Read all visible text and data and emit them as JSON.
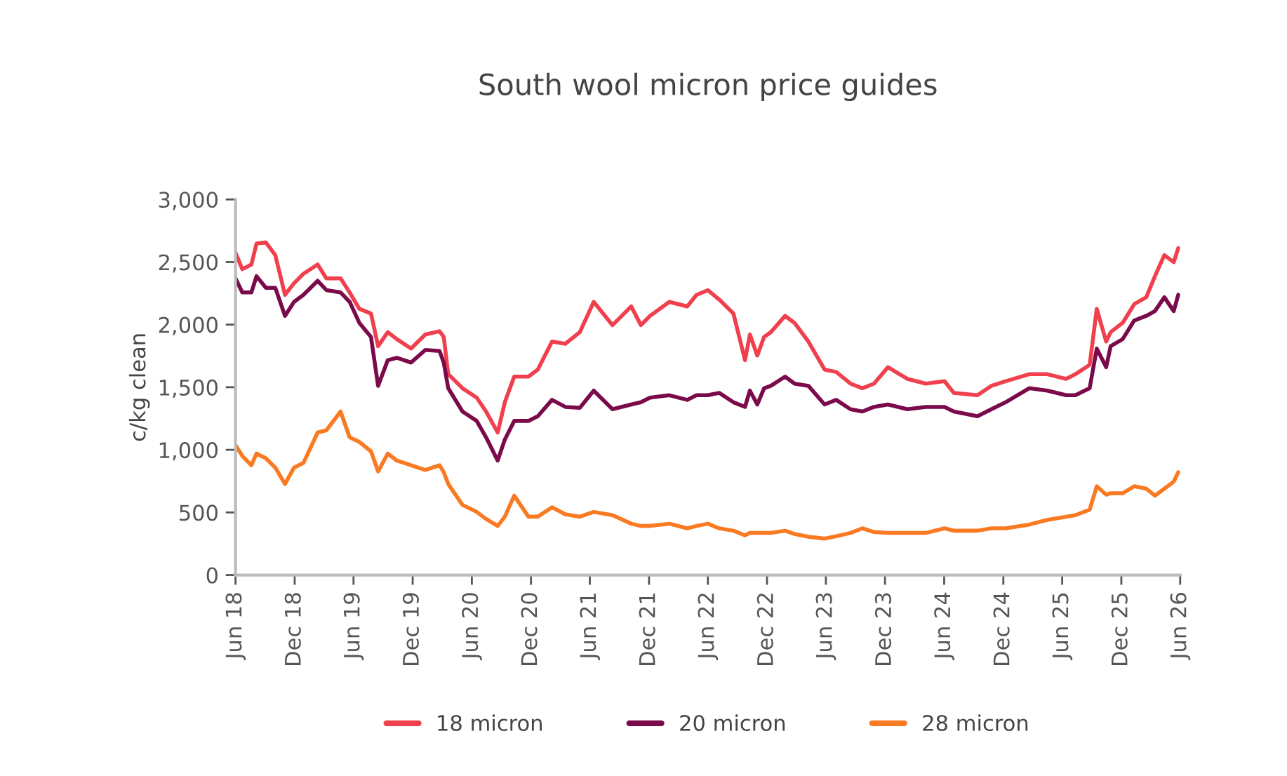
{
  "chart_data": {
    "type": "line",
    "title": "South wool micron price guides",
    "ylabel": "c/kg clean",
    "x": [
      "2018-06-01",
      "2018-06-22",
      "2018-07-20",
      "2018-08-05",
      "2018-09-03",
      "2018-10-02",
      "2018-11-01",
      "2018-11-29",
      "2018-12-28",
      "2019-02-10",
      "2019-03-09",
      "2019-04-22",
      "2019-05-20",
      "2019-06-19",
      "2019-07-25",
      "2019-08-16",
      "2019-09-15",
      "2019-10-13",
      "2019-11-26",
      "2020-01-09",
      "2020-02-22",
      "2020-03-06",
      "2020-03-20",
      "2020-05-03",
      "2020-06-16",
      "2020-07-15",
      "2020-08-20",
      "2020-09-11",
      "2020-10-10",
      "2020-11-23",
      "2020-12-22",
      "2021-02-04",
      "2021-03-17",
      "2021-05-01",
      "2021-06-13",
      "2021-08-10",
      "2021-10-07",
      "2021-11-06",
      "2021-12-04",
      "2022-02-02",
      "2022-03-29",
      "2022-04-27",
      "2022-06-01",
      "2022-07-06",
      "2022-08-19",
      "2022-09-24",
      "2022-10-09",
      "2022-11-01",
      "2022-11-22",
      "2022-12-13",
      "2023-01-26",
      "2023-02-24",
      "2023-04-08",
      "2023-05-28",
      "2023-07-03",
      "2023-08-16",
      "2023-09-22",
      "2023-10-28",
      "2023-12-10",
      "2024-02-08",
      "2024-04-05",
      "2024-06-02",
      "2024-07-01",
      "2024-09-12",
      "2024-10-25",
      "2024-12-08",
      "2025-02-19",
      "2025-04-16",
      "2025-06-13",
      "2025-07-12",
      "2025-08-25",
      "2025-09-16",
      "2025-10-15",
      "2025-10-29",
      "2025-12-05",
      "2026-01-10",
      "2026-02-16",
      "2026-03-15",
      "2026-04-13",
      "2026-05-12",
      "2026-05-26"
    ],
    "series": [
      {
        "name": "18 micron",
        "color": "#f0404e",
        "values": [
          2574,
          2443,
          2480,
          2648,
          2656,
          2555,
          2238,
          2331,
          2406,
          2480,
          2369,
          2369,
          2257,
          2126,
          2089,
          1828,
          1940,
          1884,
          1809,
          1921,
          1947,
          1902,
          1604,
          1492,
          1417,
          1306,
          1138,
          1380,
          1585,
          1585,
          1641,
          1865,
          1847,
          1940,
          2182,
          1996,
          2145,
          1996,
          2070,
          2182,
          2145,
          2238,
          2275,
          2201,
          2089,
          1716,
          1921,
          1753,
          1902,
          1940,
          2070,
          2014,
          1865,
          1641,
          1622,
          1529,
          1492,
          1529,
          1660,
          1567,
          1529,
          1548,
          1455,
          1436,
          1511,
          1548,
          1604,
          1604,
          1567,
          1604,
          1679,
          2126,
          1865,
          1940,
          2014,
          2164,
          2219,
          2387,
          2555,
          2499,
          2611
        ]
      },
      {
        "name": "20 micron",
        "color": "#7a0a4a",
        "values": [
          2369,
          2257,
          2257,
          2387,
          2294,
          2294,
          2070,
          2182,
          2238,
          2350,
          2276,
          2257,
          2182,
          2014,
          1902,
          1511,
          1716,
          1735,
          1697,
          1798,
          1790,
          1697,
          1492,
          1306,
          1231,
          1100,
          914,
          1082,
          1231,
          1231,
          1268,
          1399,
          1343,
          1335,
          1473,
          1324,
          1362,
          1380,
          1417,
          1436,
          1399,
          1436,
          1436,
          1455,
          1380,
          1343,
          1473,
          1362,
          1492,
          1511,
          1585,
          1529,
          1511,
          1362,
          1399,
          1324,
          1306,
          1343,
          1362,
          1324,
          1343,
          1343,
          1306,
          1268,
          1324,
          1380,
          1492,
          1473,
          1436,
          1436,
          1492,
          1809,
          1660,
          1828,
          1884,
          2033,
          2070,
          2108,
          2219,
          2108,
          2238
        ]
      },
      {
        "name": "28 micron",
        "color": "#f97a22",
        "values": [
          1037,
          951,
          877,
          970,
          932,
          858,
          727,
          858,
          895,
          1138,
          1156,
          1306,
          1100,
          1063,
          988,
          828,
          970,
          914,
          877,
          839,
          877,
          821,
          727,
          560,
          504,
          448,
          392,
          466,
          634,
          466,
          466,
          541,
          485,
          466,
          504,
          478,
          410,
          392,
          392,
          410,
          373,
          392,
          410,
          373,
          354,
          317,
          336,
          336,
          336,
          336,
          354,
          328,
          306,
          291,
          310,
          336,
          373,
          343,
          336,
          336,
          336,
          373,
          354,
          354,
          373,
          373,
          403,
          440,
          466,
          478,
          522,
          709,
          642,
          653,
          653,
          709,
          690,
          634,
          690,
          746,
          821
        ]
      }
    ],
    "xlim": [
      "2018-06-01",
      "2026-06-01"
    ],
    "xticks": [
      {
        "value": "2018-06-01",
        "label": "Jun 18"
      },
      {
        "value": "2018-12-01",
        "label": "Dec 18"
      },
      {
        "value": "2019-06-01",
        "label": "Jun 19"
      },
      {
        "value": "2019-12-01",
        "label": "Dec 19"
      },
      {
        "value": "2020-06-01",
        "label": "Jun 20"
      },
      {
        "value": "2020-12-01",
        "label": "Dec 20"
      },
      {
        "value": "2021-06-01",
        "label": "Jun 21"
      },
      {
        "value": "2021-12-01",
        "label": "Dec 21"
      },
      {
        "value": "2022-06-01",
        "label": "Jun 22"
      },
      {
        "value": "2022-12-01",
        "label": "Dec 22"
      },
      {
        "value": "2023-06-01",
        "label": "Jun 23"
      },
      {
        "value": "2023-12-01",
        "label": "Dec 23"
      },
      {
        "value": "2024-06-01",
        "label": "Jun 24"
      },
      {
        "value": "2024-12-01",
        "label": "Dec 24"
      },
      {
        "value": "2025-06-01",
        "label": "Jun 25"
      },
      {
        "value": "2025-12-01",
        "label": "Dec 25"
      },
      {
        "value": "2026-06-01",
        "label": "Jun 26"
      }
    ],
    "ylim": [
      0,
      3000
    ],
    "yticks": [
      {
        "value": 0,
        "label": "0"
      },
      {
        "value": 500,
        "label": "500"
      },
      {
        "value": 1000,
        "label": "1,000"
      },
      {
        "value": 1500,
        "label": "1,500"
      },
      {
        "value": 2000,
        "label": "2,000"
      },
      {
        "value": 2500,
        "label": "2,500"
      },
      {
        "value": 3000,
        "label": "3,000"
      }
    ],
    "grid": false,
    "legend": "bottom",
    "marker": "none",
    "line_style": "solid"
  }
}
